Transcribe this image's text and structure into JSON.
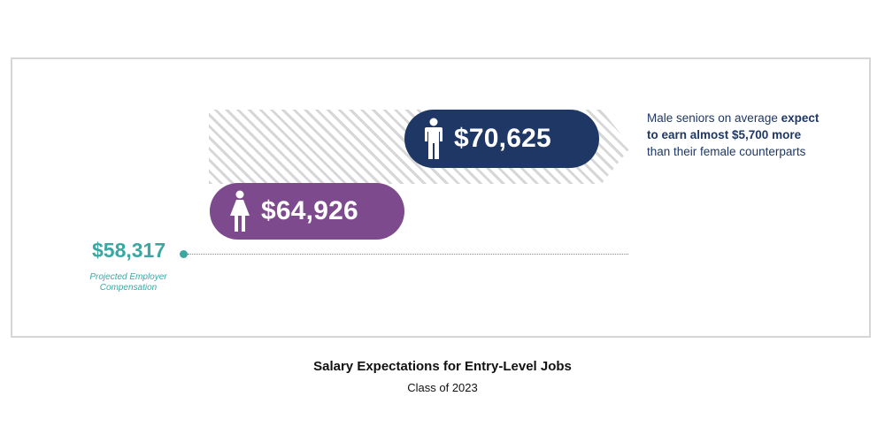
{
  "chart_data": {
    "type": "bar",
    "title": "Salary Expectations for Entry-Level Jobs",
    "subtitle": "Class of 2023",
    "categories": [
      "Projected Employer Compensation",
      "Female",
      "Male"
    ],
    "values": [
      58317,
      64926,
      70625
    ],
    "value_labels": [
      "$58,317",
      "$64,926",
      "$70,625"
    ],
    "baseline_label": "Projected Employer Compensation",
    "annotation": {
      "part1": "Male seniors on average ",
      "bold": "expect to earn almost $5,700 more",
      "part2": " than their female counterparts"
    }
  },
  "colors": {
    "male": "#1e3764",
    "female": "#7d4a8d",
    "baseline": "#3aa7a3",
    "hatch": "#d7d7d7"
  },
  "icons": {
    "male": "person-icon",
    "female": "woman-icon"
  }
}
